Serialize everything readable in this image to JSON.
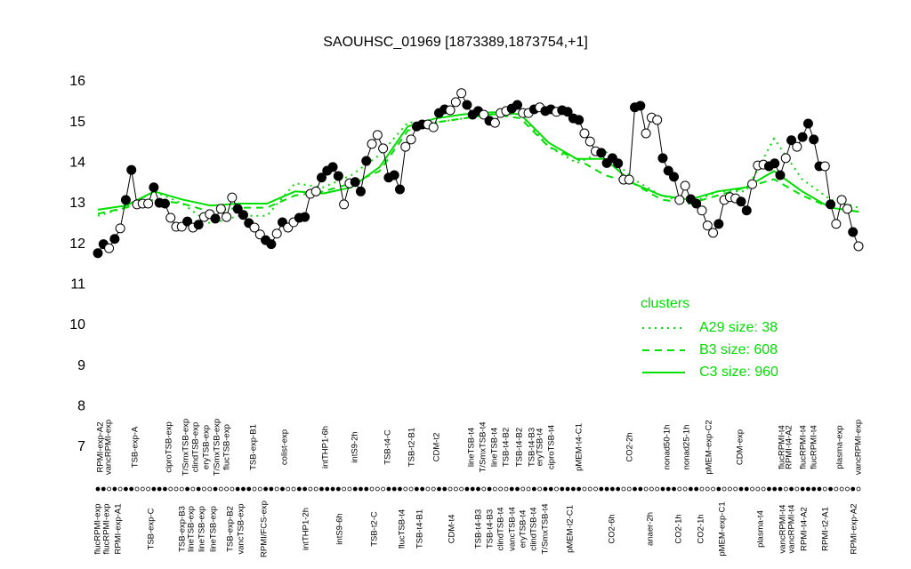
{
  "chart_data": {
    "type": "scatter",
    "title": "SAOUHSC_01969 [1873389,1873754,+1]",
    "ylim": [
      7,
      16
    ],
    "yticks": [
      7,
      8,
      9,
      10,
      11,
      12,
      13,
      14,
      15,
      16
    ],
    "point_color": "#000000",
    "values": [
      11.78,
      12.0,
      11.9,
      12.13,
      12.39,
      13.09,
      13.83,
      12.98,
      13.0,
      13.0,
      13.4,
      13.02,
      13.0,
      12.65,
      12.43,
      12.43,
      12.56,
      12.41,
      12.48,
      12.67,
      12.74,
      12.63,
      12.87,
      12.67,
      13.15,
      12.87,
      12.72,
      12.52,
      12.41,
      12.24,
      12.1,
      12.0,
      12.26,
      12.54,
      12.41,
      12.54,
      12.65,
      12.67,
      13.24,
      13.3,
      13.64,
      13.81,
      13.9,
      13.68,
      12.98,
      13.5,
      13.53,
      13.3,
      14.05,
      14.47,
      14.69,
      14.36,
      13.64,
      13.7,
      13.35,
      14.4,
      14.58,
      14.9,
      14.95,
      14.95,
      14.88,
      15.23,
      15.32,
      15.3,
      15.5,
      15.72,
      15.43,
      15.19,
      15.28,
      15.19,
      15.04,
      14.99,
      15.23,
      15.28,
      15.34,
      15.43,
      15.23,
      15.23,
      15.32,
      15.37,
      15.28,
      15.32,
      15.26,
      15.3,
      15.26,
      15.1,
      15.06,
      14.73,
      14.53,
      14.29,
      14.25,
      14.0,
      14.12,
      13.99,
      13.59,
      13.59,
      15.37,
      15.41,
      14.73,
      15.12,
      15.06,
      14.12,
      13.81,
      13.66,
      13.09,
      13.44,
      13.11,
      13.0,
      12.83,
      12.46,
      12.28,
      12.5,
      13.09,
      13.16,
      13.13,
      13.05,
      12.83,
      13.48,
      13.94,
      13.96,
      13.92,
      13.99,
      13.7,
      14.12,
      14.56,
      14.4,
      14.64,
      14.97,
      14.58,
      13.92,
      13.92,
      12.98,
      12.5,
      13.09,
      12.87,
      12.3,
      11.95
    ],
    "filled": [
      true,
      true,
      false,
      true,
      false,
      true,
      true,
      false,
      false,
      false,
      true,
      true,
      true,
      false,
      false,
      false,
      true,
      false,
      true,
      false,
      false,
      true,
      false,
      false,
      false,
      true,
      true,
      true,
      false,
      false,
      true,
      true,
      false,
      true,
      false,
      false,
      true,
      true,
      false,
      false,
      true,
      true,
      true,
      true,
      false,
      false,
      true,
      true,
      true,
      false,
      false,
      false,
      true,
      true,
      true,
      false,
      false,
      true,
      true,
      false,
      false,
      true,
      true,
      false,
      false,
      false,
      true,
      true,
      true,
      false,
      true,
      false,
      false,
      false,
      true,
      true,
      false,
      false,
      true,
      false,
      true,
      true,
      false,
      true,
      true,
      true,
      true,
      false,
      false,
      false,
      true,
      true,
      true,
      true,
      false,
      false,
      true,
      true,
      false,
      false,
      false,
      true,
      true,
      true,
      false,
      false,
      true,
      true,
      false,
      false,
      false,
      true,
      false,
      false,
      false,
      true,
      true,
      false,
      false,
      false,
      true,
      true,
      true,
      false,
      true,
      false,
      true,
      true,
      true,
      true,
      false,
      true,
      false,
      false,
      false,
      true,
      false
    ],
    "top_labels": [
      "RPMI-exp-A2",
      "vancRPMI-exp",
      "TSB-exp-A",
      "ciproTSB-exp",
      "T/SmxTSB-exp",
      "clindTSB-exp",
      "eryTSB-exp",
      "T/SmxTSB-exp",
      "flucTSB-exp",
      "TSB-exp-B1",
      "colist-exp",
      "intTHP1-6h",
      "intS9-2h",
      "TSB-t4-C",
      "TSB-t2-B1",
      "CDM-t2",
      "lineTSB-t4",
      "T/SmxTSB-t4",
      "lineTSB-t4",
      "TSB-t4-B2",
      "TSB-t4-B2",
      "TSB-t4-B3",
      "eryTSB-t4",
      "ciproTSB-t4",
      "pMEM-t4-C1",
      "CO2-2h",
      "nonad50-1h",
      "nonad25-1h",
      "pMEM-exp-C2",
      "CDM-exp",
      "flucRPMI-t4",
      "RPMI-t4-A2",
      "flucRPMI-t4",
      "flucRPMI-t4",
      "plasma-exp",
      "vancRPMI-exp"
    ],
    "bottom_labels": [
      "flucRPMI-exp",
      "flucRPMI-exp",
      "RPMI-exp-A1",
      "TSB-exp-C",
      "TSB-exp-B3",
      "lineTSB-exp",
      "lineTSB-exp",
      "lineTSB-exp",
      "TSB-exp-B2",
      "vancTSB-exp",
      "RPMI/FCS-exp",
      "intTHP1-2h",
      "intS9-6h",
      "TSB-t2-C",
      "flucTSB-t4",
      "TSB-t4-B1",
      "CDM-t4",
      "TSB-t4-B3",
      "TSB-t4-B3",
      "clindTSB-t4",
      "vancTSB-t4",
      "eryTSB-t4",
      "clindTSB-t4",
      "T/SmxTSB-t4",
      "pMEM-t2-C1",
      "CO2-6h",
      "anaer-2h",
      "CO2-1h",
      "CO2-1h",
      "pMEM-exp-C1",
      "plasma-t4",
      "vancRPMI-t4",
      "vancRPMI-t4",
      "RPMI-t4-A2",
      "RPMI-t2-A1",
      "RPMI-exp-A2"
    ],
    "legend_title": "clusters",
    "legend_position": "right",
    "series": [
      {
        "name": "A29 size: 38",
        "style": "dotted",
        "color": "#00e000",
        "values": [
          12.7,
          12.9,
          13.3,
          13.0,
          12.5,
          12.7,
          12.7,
          13.5,
          13.4,
          13.7,
          14.2,
          15.0,
          15.0,
          15.1,
          15.2,
          15.2,
          14.4,
          14.0,
          14.3,
          13.6,
          13.2,
          13.0,
          13.3,
          13.3,
          14.6,
          13.6,
          13.1,
          12.9
        ]
      },
      {
        "name": "B3 size: 608",
        "style": "dashed",
        "color": "#00e000",
        "values": [
          12.75,
          12.9,
          13.1,
          13.0,
          12.8,
          12.9,
          12.9,
          13.2,
          13.3,
          13.5,
          13.8,
          14.8,
          15.0,
          15.1,
          15.2,
          15.1,
          14.4,
          14.1,
          13.7,
          13.5,
          13.1,
          13.0,
          13.2,
          13.4,
          13.6,
          13.2,
          12.9,
          12.8
        ]
      },
      {
        "name": "C3 size: 960",
        "style": "solid",
        "color": "#00e000",
        "values": [
          12.85,
          12.95,
          13.3,
          13.1,
          12.95,
          13.0,
          13.0,
          13.3,
          13.25,
          13.4,
          13.9,
          14.9,
          15.1,
          15.2,
          15.25,
          15.2,
          14.5,
          14.1,
          14.1,
          13.5,
          13.2,
          13.1,
          13.3,
          13.4,
          13.8,
          13.3,
          12.9,
          12.8
        ]
      }
    ]
  }
}
